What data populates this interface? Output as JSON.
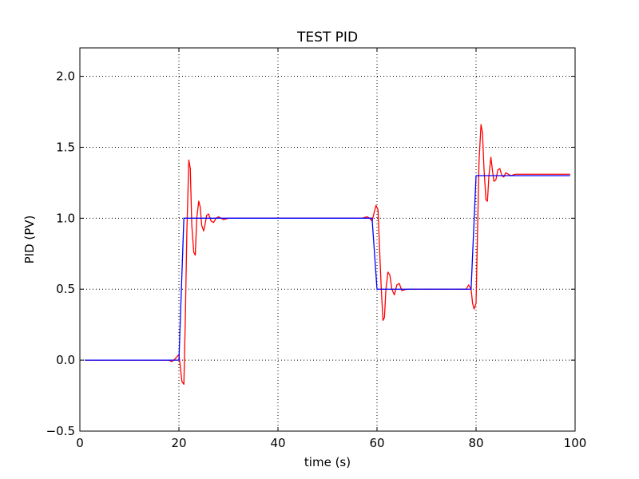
{
  "chart_data": {
    "type": "line",
    "title": "TEST PID",
    "xlabel": "time (s)",
    "ylabel": "PID (PV)",
    "xlim": [
      0,
      100
    ],
    "ylim": [
      -0.5,
      2.2
    ],
    "xticks": [
      "0",
      "20",
      "40",
      "60",
      "80",
      "100"
    ],
    "xtick_values": [
      0,
      20,
      40,
      60,
      80,
      100
    ],
    "yticks": [
      "−0.5",
      "0.0",
      "0.5",
      "1.0",
      "1.5",
      "2.0"
    ],
    "ytick_values": [
      -0.5,
      0.0,
      0.5,
      1.0,
      1.5,
      2.0
    ],
    "grid": true,
    "series": [
      {
        "color": "#ff0000",
        "x": [
          1,
          18,
          18.5,
          19,
          19.5,
          20,
          20.3,
          20.6,
          21,
          21.3,
          21.6,
          22,
          22.3,
          22.6,
          23,
          23.3,
          23.6,
          24,
          24.3,
          24.6,
          25,
          25.3,
          25.6,
          26,
          26.5,
          27,
          27.5,
          28,
          29,
          30,
          40,
          50,
          56,
          57,
          58,
          58.5,
          59,
          59.5,
          59.8,
          60.2,
          60.5,
          60.8,
          61.2,
          61.5,
          61.8,
          62.2,
          62.6,
          63,
          63.5,
          64,
          64.5,
          65,
          66,
          67,
          70,
          75,
          77,
          78,
          78.5,
          79,
          79.3,
          79.6,
          80,
          80.3,
          80.6,
          81,
          81.3,
          81.6,
          82,
          82.3,
          82.6,
          83,
          83.3,
          83.6,
          84,
          84.4,
          84.8,
          85.2,
          85.6,
          86,
          86.5,
          87,
          88,
          90,
          95,
          99
        ],
        "y": [
          0,
          0,
          -0.01,
          0,
          0.02,
          0.04,
          -0.05,
          -0.15,
          -0.17,
          0.3,
          0.9,
          1.41,
          1.35,
          0.95,
          0.76,
          0.74,
          1.0,
          1.12,
          1.08,
          0.95,
          0.91,
          0.96,
          1.02,
          1.03,
          0.98,
          0.97,
          1.0,
          1.01,
          0.99,
          1.0,
          1.0,
          1.0,
          1.0,
          1.0,
          1.01,
          1.0,
          0.98,
          1.05,
          1.09,
          1.06,
          0.8,
          0.55,
          0.28,
          0.3,
          0.5,
          0.62,
          0.6,
          0.5,
          0.46,
          0.53,
          0.54,
          0.49,
          0.5,
          0.5,
          0.5,
          0.5,
          0.5,
          0.5,
          0.53,
          0.5,
          0.4,
          0.36,
          0.4,
          0.9,
          1.4,
          1.66,
          1.6,
          1.35,
          1.13,
          1.12,
          1.3,
          1.43,
          1.34,
          1.26,
          1.27,
          1.34,
          1.35,
          1.3,
          1.29,
          1.32,
          1.31,
          1.3,
          1.31,
          1.31,
          1.31,
          1.31
        ]
      },
      {
        "color": "#0000ff",
        "x": [
          1,
          18,
          19,
          20,
          21,
          58,
          59,
          60,
          79,
          80,
          99
        ],
        "y": [
          0,
          0,
          0,
          0,
          1.0,
          1.0,
          1.0,
          0.5,
          0.5,
          1.3,
          1.3
        ]
      }
    ]
  }
}
